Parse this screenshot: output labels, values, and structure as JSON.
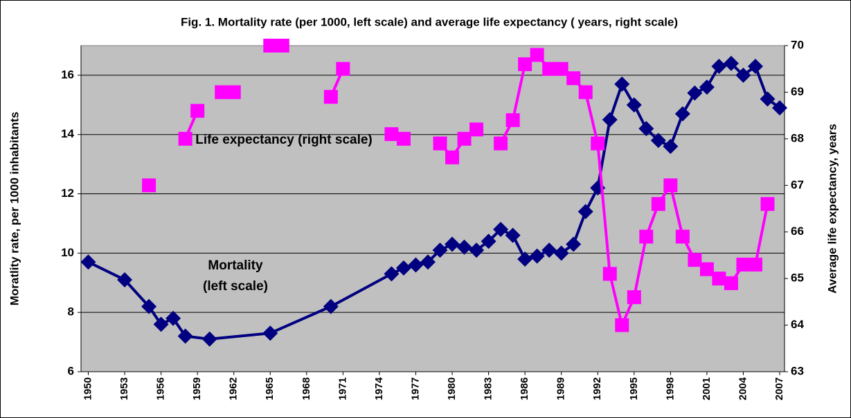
{
  "chart_data": {
    "type": "line",
    "title": "Fig. 1. Mortality rate (per 1000, left scale) and average life expectancy ( years, right scale)",
    "y_label": "Moratlity rate, per 1000 inhabitants",
    "y2_label": "Average life expectancy, years",
    "annotations": [
      "Life expectancy (right scale)",
      "Mortality",
      "(left scale)"
    ],
    "xlim": [
      1949.4,
      2007.4
    ],
    "xticks": [
      1950,
      1953,
      1956,
      1959,
      1962,
      1965,
      1968,
      1971,
      1974,
      1977,
      1980,
      1983,
      1986,
      1989,
      1992,
      1995,
      1998,
      2001,
      2004,
      2007
    ],
    "ylim": [
      6,
      17
    ],
    "yticks": [
      6,
      8,
      10,
      12,
      14,
      16
    ],
    "y2lim": [
      63,
      70
    ],
    "y2ticks": [
      63,
      64,
      65,
      66,
      67,
      68,
      69,
      70
    ],
    "grid": true,
    "plot_background": "#c0c0c0",
    "series": [
      {
        "name": "Mortality",
        "color": "#000080",
        "marker": "diamond",
        "x": [
          1950,
          1953,
          1955,
          1956,
          1957,
          1958,
          1960,
          1965,
          1970,
          1975,
          1976,
          1977,
          1978,
          1979,
          1980,
          1981,
          1982,
          1983,
          1984,
          1985,
          1986,
          1987,
          1988,
          1989,
          1990,
          1991,
          1992,
          1993,
          1994,
          1995,
          1996,
          1997,
          1998,
          1999,
          2000,
          2001,
          2002,
          2003,
          2004,
          2005,
          2006,
          2007
        ],
        "values": [
          9.7,
          9.1,
          8.2,
          7.6,
          7.8,
          7.2,
          7.1,
          7.3,
          8.2,
          9.3,
          9.5,
          9.6,
          9.7,
          10.1,
          10.3,
          10.2,
          10.1,
          10.4,
          10.8,
          10.6,
          9.8,
          9.9,
          10.1,
          10.0,
          10.3,
          11.4,
          12.2,
          14.5,
          15.7,
          15.0,
          14.2,
          13.8,
          13.6,
          14.7,
          15.4,
          15.6,
          16.3,
          16.4,
          16.0,
          16.3,
          15.2,
          14.9
        ]
      },
      {
        "name": "Life expectancy",
        "color": "#ff00ff",
        "marker": "square",
        "axis": "y2",
        "x": [
          1955,
          1956,
          1957,
          1958,
          1959,
          1960,
          1961,
          1962,
          1963,
          1964,
          1965,
          1966,
          1967,
          1968,
          1969,
          1970,
          1971,
          1972,
          1973,
          1974,
          1975,
          1976,
          1977,
          1978,
          1979,
          1980,
          1981,
          1982,
          1983,
          1984,
          1985,
          1986,
          1987,
          1988,
          1989,
          1990,
          1991,
          1992,
          1993,
          1994,
          1995,
          1996,
          1997,
          1998,
          1999,
          2000,
          2001,
          2002,
          2003,
          2004,
          2005,
          2006
        ],
        "values": [
          67.0,
          null,
          null,
          68.0,
          68.6,
          null,
          69.0,
          69.0,
          null,
          null,
          70.0,
          70.0,
          null,
          null,
          null,
          68.9,
          69.5,
          null,
          null,
          null,
          68.1,
          68.0,
          null,
          null,
          67.9,
          67.6,
          68.0,
          68.2,
          null,
          67.9,
          68.4,
          69.6,
          69.8,
          69.5,
          69.5,
          69.3,
          69.0,
          67.9,
          65.1,
          64.0,
          64.6,
          65.9,
          66.6,
          67.0,
          65.9,
          65.4,
          65.2,
          65.0,
          64.9,
          65.3,
          65.3,
          66.6
        ]
      }
    ]
  }
}
